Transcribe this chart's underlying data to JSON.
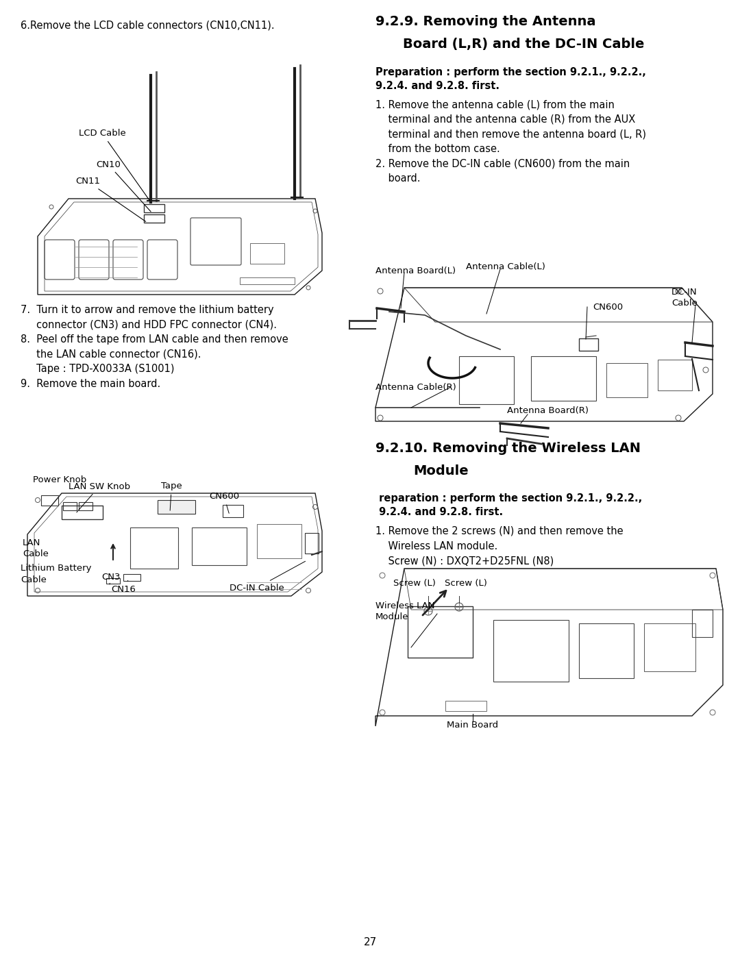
{
  "bg_color": "#ffffff",
  "page_number": "27",
  "font_family": "DejaVu Sans",
  "left_step6": "6.Remove the LCD cable connectors (CN10,CN11).",
  "left_steps789": "7.  Turn it to arrow and remove the lithium battery\n     connector (CN3) and HDD FPC connector (CN4).\n8.  Peel off the tape from LAN cable and then remove\n     the LAN cable connector (CN16).\n     Tape : TPD-X0033A (S1001)\n9.  Remove the main board.",
  "right_title1a": "9.2.9. Removing the Antenna",
  "right_title1b": "Board (L,R) and the DC-IN Cable",
  "right_prep1": "Preparation : perform the section 9.2.1., 9.2.2.,\n9.2.4. and 9.2.8. first.",
  "right_steps12": "1. Remove the antenna cable (L) from the main\n    terminal and the antenna cable (R) from the AUX\n    terminal and then remove the antenna board (L, R)\n    from the bottom case.\n2. Remove the DC-IN cable (CN600) from the main\n    board.",
  "right_title2a": "9.2.10. Removing the Wireless LAN",
  "right_title2b": "Module",
  "right_prep2": " reparation : perform the section 9.2.1., 9.2.2.,\n 9.2.4. and 9.2.8. first.",
  "right_steps_wlan": "1. Remove the 2 screws (N) and then remove the\n    Wireless LAN module.\n    Screw (N) : DXQT2+D25FNL (N8)"
}
